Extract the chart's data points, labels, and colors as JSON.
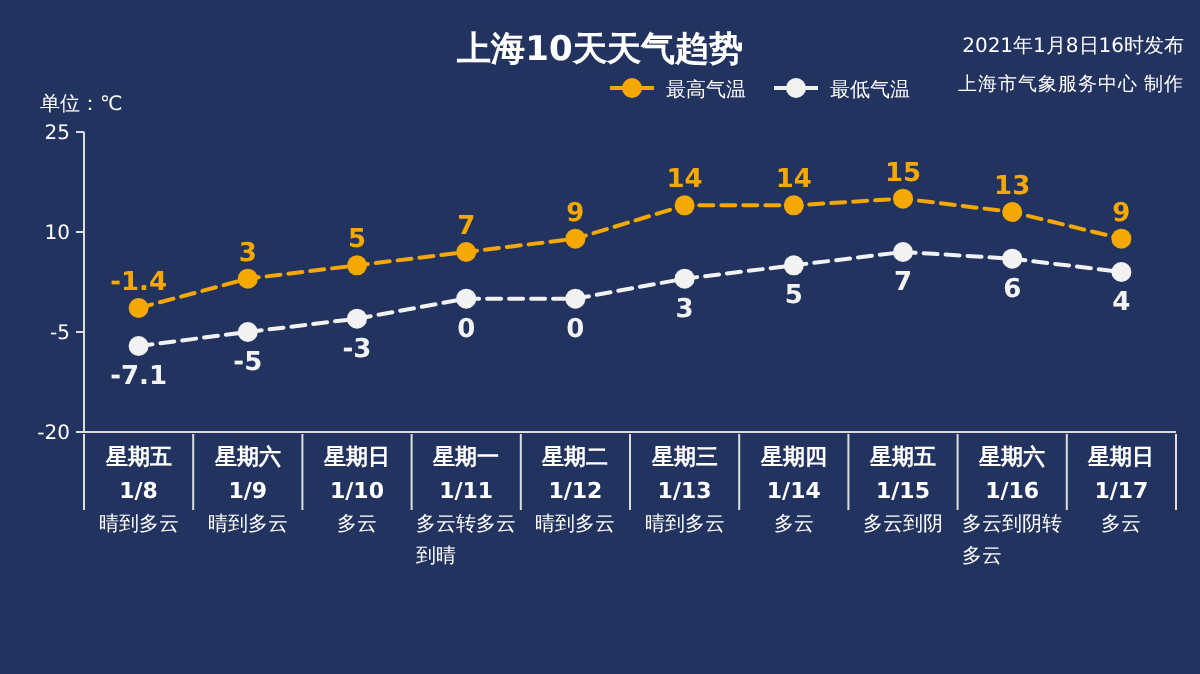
{
  "chart_data": {
    "type": "line",
    "title": "上海10天天气趋势",
    "subtitle": "2021年1月8日16时发布",
    "ylabel": "单位：℃",
    "categories": [
      "星期五\n1/8",
      "星期六\n1/9",
      "星期日\n1/10",
      "星期一\n1/11",
      "星期二\n1/12",
      "星期三\n1/13",
      "星期四\n1/14",
      "星期五\n1/15",
      "星期六\n1/16",
      "星期日\n1/17"
    ],
    "series": [
      {
        "name": "最高气温",
        "color": "#f5a800",
        "values": [
          -1.4,
          3,
          5,
          7,
          9,
          14,
          14,
          15,
          13,
          9
        ]
      },
      {
        "name": "最低气温",
        "color": "#f2f2f2",
        "values": [
          -7.1,
          -5,
          -3,
          0,
          0,
          3,
          5,
          7,
          6,
          4
        ]
      }
    ],
    "ylim": [
      -20,
      25
    ],
    "yticks": [
      -20,
      -5,
      10,
      25
    ],
    "data_labels": true,
    "legend": "top right",
    "marker": "circle",
    "line_style": "dashed",
    "grid": false,
    "annotations": [
      "晴到多云",
      "晴到多云",
      "多云",
      "多云转多云到晴",
      "晴到多云",
      "晴到多云",
      "多云",
      "多云到阴",
      "多云到阴转多云",
      "多云",
      "上海市气象服务中心 制作"
    ]
  }
}
